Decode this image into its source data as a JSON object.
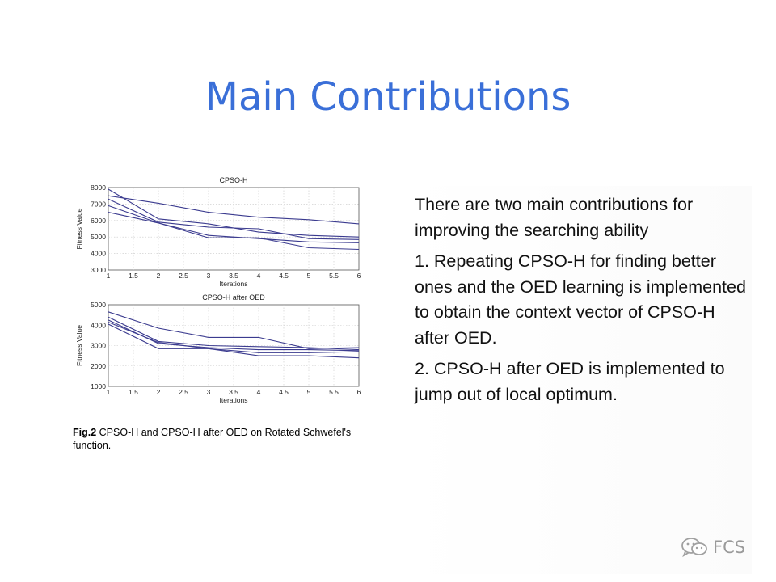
{
  "slide": {
    "title": "Main Contributions",
    "body": [
      "There are two main contributions for improving the searching ability",
      "1. Repeating CPSO-H for finding better ones and the OED learning is implemented to obtain the context vector of  CPSO-H after OED.",
      "2. CPSO-H after OED is implemented to jump out of local optimum."
    ],
    "caption": {
      "label": "Fig.2",
      "text": " CPSO-H and CPSO-H after OED on Rotated Schwefel's function."
    },
    "watermark": {
      "text": "FCS",
      "icon": "wechat-icon"
    }
  },
  "colors": {
    "title": "#3a6fd8",
    "series": "#3b3b8f",
    "axes": "#555555"
  },
  "chart_data": [
    {
      "type": "line",
      "title": "CPSO-H",
      "xlabel": "Iterations",
      "ylabel": "Fitness Value",
      "x": [
        1,
        2,
        3,
        4,
        5,
        6
      ],
      "xticks": [
        "1",
        "1.5",
        "2",
        "2.5",
        "3",
        "3.5",
        "4",
        "4.5",
        "5",
        "5.5",
        "6"
      ],
      "yticks": [
        "3000",
        "4000",
        "5000",
        "6000",
        "7000",
        "8000"
      ],
      "xlim": [
        1,
        6
      ],
      "ylim": [
        3000,
        8000
      ],
      "grid": true,
      "series": [
        {
          "values": [
            7500,
            7050,
            6500,
            6200,
            6050,
            5800
          ]
        },
        {
          "values": [
            7900,
            6100,
            5800,
            5300,
            5100,
            5000
          ]
        },
        {
          "values": [
            7300,
            5900,
            5600,
            5500,
            4900,
            4850
          ]
        },
        {
          "values": [
            6900,
            5850,
            5100,
            4900,
            4700,
            4650
          ]
        },
        {
          "values": [
            6500,
            5850,
            4950,
            4950,
            4350,
            4250
          ]
        }
      ]
    },
    {
      "type": "line",
      "title": "CPSO-H after OED",
      "xlabel": "Iterations",
      "ylabel": "Fitness Value",
      "x": [
        1,
        2,
        3,
        4,
        5,
        6
      ],
      "xticks": [
        "1",
        "1.5",
        "2",
        "2.5",
        "3",
        "3.5",
        "4",
        "4.5",
        "5",
        "5.5",
        "6"
      ],
      "yticks": [
        "1000",
        "2000",
        "3000",
        "4000",
        "5000"
      ],
      "xlim": [
        1,
        6
      ],
      "ylim": [
        1000,
        5000
      ],
      "grid": true,
      "series": [
        {
          "values": [
            4650,
            3850,
            3400,
            3400,
            2850,
            2900
          ]
        },
        {
          "values": [
            4400,
            3200,
            3000,
            2950,
            2900,
            2800
          ]
        },
        {
          "values": [
            4250,
            3100,
            2900,
            2800,
            2800,
            2750
          ]
        },
        {
          "values": [
            4150,
            3150,
            2850,
            2650,
            2650,
            2700
          ]
        },
        {
          "values": [
            4050,
            2850,
            2850,
            2500,
            2500,
            2400
          ]
        }
      ]
    }
  ]
}
